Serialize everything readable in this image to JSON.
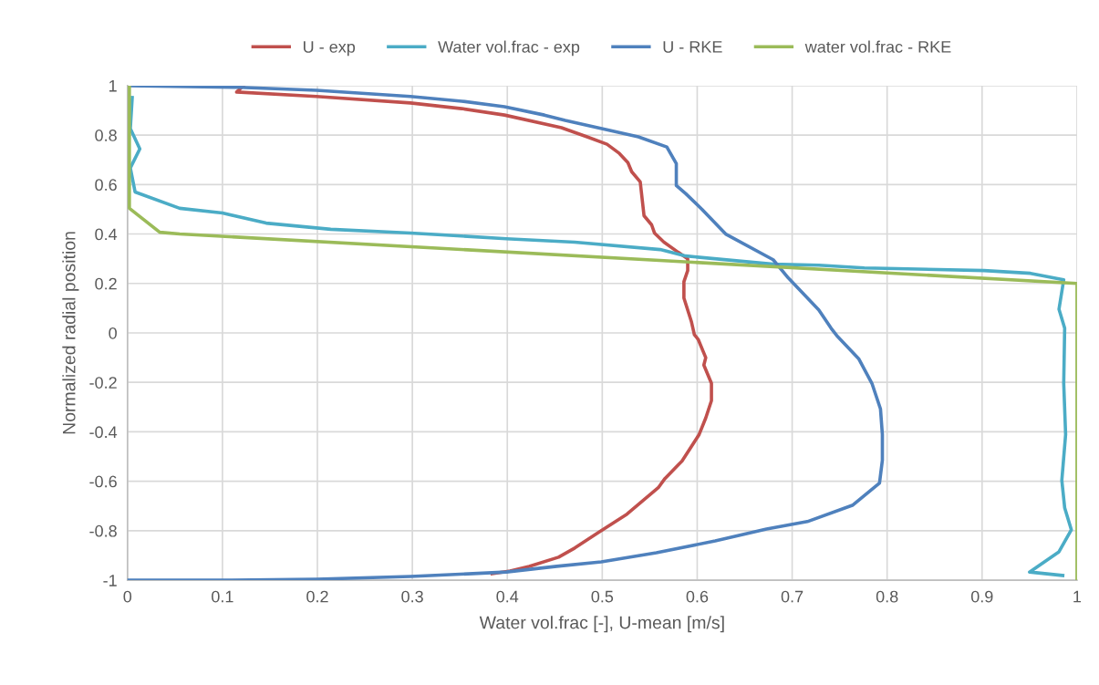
{
  "chart_data": {
    "type": "line",
    "xlabel": "Water vol.frac [-], U-mean [m/s]",
    "ylabel": "Normalized radial position",
    "xlim": [
      0,
      1
    ],
    "ylim": [
      -1,
      1
    ],
    "xticks": [
      0,
      0.1,
      0.2,
      0.3,
      0.4,
      0.5,
      0.6,
      0.7,
      0.8,
      0.9,
      1
    ],
    "yticks": [
      -1,
      -0.8,
      -0.6,
      -0.4,
      -0.2,
      0,
      0.2,
      0.4,
      0.6,
      0.8,
      1
    ],
    "grid": true,
    "legend": "top",
    "marker": "none",
    "line_style": "solid",
    "series": [
      {
        "name": "U - exp",
        "color": "#c0504d",
        "x": [
          0.122,
          0.118,
          0.115,
          0.199,
          0.298,
          0.352,
          0.397,
          0.457,
          0.484,
          0.505,
          0.518,
          0.527,
          0.531,
          0.54,
          0.544,
          0.552,
          0.555,
          0.565,
          0.58,
          0.59,
          0.59,
          0.586,
          0.586,
          0.594,
          0.597,
          0.601,
          0.609,
          0.607,
          0.615,
          0.615,
          0.609,
          0.602,
          0.584,
          0.566,
          0.559,
          0.526,
          0.496,
          0.471,
          0.454,
          0.423,
          0.403,
          0.384
        ],
        "values": [
          1.0,
          0.985,
          0.974,
          0.956,
          0.93,
          0.907,
          0.881,
          0.83,
          0.793,
          0.763,
          0.726,
          0.689,
          0.652,
          0.611,
          0.474,
          0.437,
          0.404,
          0.367,
          0.326,
          0.3,
          0.252,
          0.207,
          0.141,
          0.044,
          -0.007,
          -0.026,
          -0.1,
          -0.13,
          -0.204,
          -0.274,
          -0.344,
          -0.411,
          -0.518,
          -0.589,
          -0.626,
          -0.733,
          -0.807,
          -0.87,
          -0.907,
          -0.944,
          -0.963,
          -0.974
        ]
      },
      {
        "name": "Water vol.frac - exp",
        "color": "#4bacc6",
        "x": [
          0.005,
          0.003,
          0.013,
          0.003,
          0.008,
          0.055,
          0.1,
          0.146,
          0.214,
          0.298,
          0.399,
          0.471,
          0.561,
          0.588,
          0.68,
          0.728,
          0.776,
          0.902,
          0.951,
          0.986,
          0.981,
          0.987,
          0.986,
          0.988,
          0.984,
          0.987,
          0.994,
          0.981,
          0.95,
          0.985
        ],
        "values": [
          0.952,
          0.826,
          0.744,
          0.667,
          0.57,
          0.504,
          0.485,
          0.444,
          0.419,
          0.404,
          0.381,
          0.367,
          0.337,
          0.311,
          0.278,
          0.274,
          0.263,
          0.252,
          0.241,
          0.215,
          0.096,
          0.019,
          -0.204,
          -0.411,
          -0.596,
          -0.707,
          -0.796,
          -0.885,
          -0.967,
          -0.981
        ]
      },
      {
        "name": "U - RKE",
        "color": "#4f81bd",
        "x": [
          0.002,
          0.118,
          0.199,
          0.298,
          0.352,
          0.397,
          0.439,
          0.461,
          0.538,
          0.568,
          0.578,
          0.578,
          0.588,
          0.605,
          0.63,
          0.68,
          0.696,
          0.728,
          0.741,
          0.747,
          0.77,
          0.784,
          0.793,
          0.795,
          0.795,
          0.792,
          0.764,
          0.716,
          0.673,
          0.619,
          0.557,
          0.499,
          0.452,
          0.399,
          0.298,
          0.199,
          0.102,
          0.0
        ],
        "values": [
          1.0,
          0.993,
          0.981,
          0.956,
          0.937,
          0.915,
          0.881,
          0.859,
          0.793,
          0.752,
          0.685,
          0.596,
          0.563,
          0.5,
          0.4,
          0.296,
          0.222,
          0.093,
          0.019,
          -0.011,
          -0.104,
          -0.204,
          -0.307,
          -0.411,
          -0.515,
          -0.607,
          -0.696,
          -0.763,
          -0.793,
          -0.841,
          -0.889,
          -0.926,
          -0.944,
          -0.967,
          -0.985,
          -0.996,
          -1.0,
          -1.0
        ]
      },
      {
        "name": "water vol.frac - RKE",
        "color": "#9bbb59",
        "x": [
          0.002,
          0.002,
          0.034,
          0.055,
          1.0,
          1.0
        ],
        "values": [
          1.0,
          0.504,
          0.407,
          0.4,
          0.2,
          -1.0
        ]
      }
    ]
  }
}
